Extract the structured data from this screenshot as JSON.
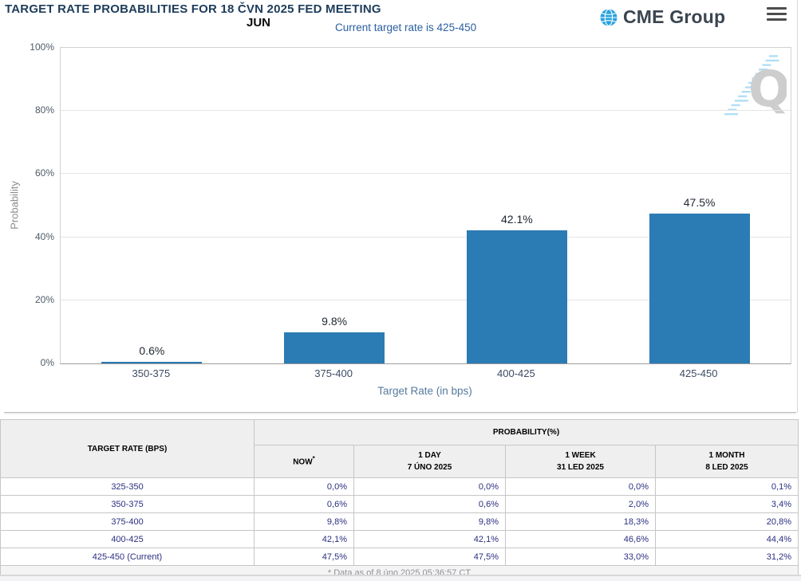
{
  "header": {
    "title": "TARGET RATE PROBABILITIES FOR 18 ČVN 2025 FED MEETING",
    "month_label": "JUN",
    "current_rate_note": "Current target rate is 425-450",
    "brand": "CME Group"
  },
  "chart_data": {
    "type": "bar",
    "categories": [
      "350-375",
      "375-400",
      "400-425",
      "425-450"
    ],
    "values": [
      0.6,
      9.8,
      42.1,
      47.5
    ],
    "value_labels": [
      "0.6%",
      "9.8%",
      "42.1%",
      "47.5%"
    ],
    "xlabel": "Target Rate (in bps)",
    "ylabel": "Probability",
    "ylim": [
      0,
      100
    ],
    "yticks": [
      "0%",
      "20%",
      "40%",
      "60%",
      "80%",
      "100%"
    ],
    "grid": true,
    "legend": "none",
    "bar_color": "#2b7bb4",
    "watermark": "Q"
  },
  "table": {
    "row_header": "TARGET RATE (BPS)",
    "col_group_header": "PROBABILITY(%)",
    "columns": [
      {
        "label": "NOW",
        "sup": "*",
        "sublabel": ""
      },
      {
        "label": "1 DAY",
        "sublabel": "7 ÚNO 2025"
      },
      {
        "label": "1 WEEK",
        "sublabel": "31 LED 2025"
      },
      {
        "label": "1 MONTH",
        "sublabel": "8 LED 2025"
      }
    ],
    "rows": [
      {
        "rate": "325-350",
        "values": [
          "0,0%",
          "0,0%",
          "0,0%",
          "0,1%"
        ]
      },
      {
        "rate": "350-375",
        "values": [
          "0,6%",
          "0,6%",
          "2,0%",
          "3,4%"
        ]
      },
      {
        "rate": "375-400",
        "values": [
          "9,8%",
          "9,8%",
          "18,3%",
          "20,8%"
        ]
      },
      {
        "rate": "400-425",
        "values": [
          "42,1%",
          "42,1%",
          "46,6%",
          "44,4%"
        ]
      },
      {
        "rate": "425-450 (Current)",
        "values": [
          "47,5%",
          "47,5%",
          "33,0%",
          "31,2%"
        ]
      }
    ],
    "footnote": "* Data as of 8 úno 2025 05:36:57 CT"
  },
  "colors": {
    "bar": "#2b7bb4",
    "title_text": "#1d3c5a",
    "note_text": "#2a5f9f",
    "table_value_text": "#2a2f80",
    "now_column_bg": "#f6f6da",
    "header_bg": "#efefef",
    "watermark_dash": "#a9dbf4",
    "watermark_letter": "#c8c8c8"
  }
}
